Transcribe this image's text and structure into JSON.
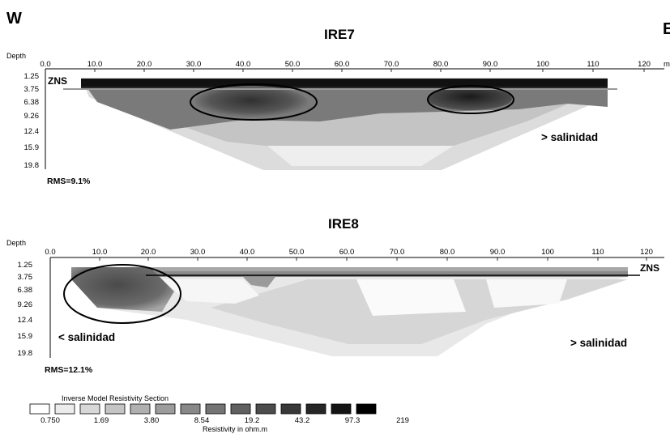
{
  "directions": {
    "west": "W",
    "east": "E"
  },
  "depth_label": "Depth",
  "x_ticks": [
    "0.0",
    "10.0",
    "20.0",
    "30.0",
    "40.0",
    "50.0",
    "60.0",
    "70.0",
    "80.0",
    "90.0",
    "100",
    "110",
    "120"
  ],
  "x_unit": "m",
  "depth_ticks": [
    "1.25",
    "3.75",
    "6.38",
    "9.26",
    "12.4",
    "15.9",
    "19.8"
  ],
  "sections": [
    {
      "title": "IRE7",
      "rms": "RMS=9.1%",
      "zns": "ZNS",
      "labels": [
        "> salinidad"
      ]
    },
    {
      "title": "IRE8",
      "rms": "RMS=12.1%",
      "zns": "ZNS",
      "labels": [
        "< salinidad",
        "> salinidad"
      ]
    }
  ],
  "legend": {
    "title": "Inverse Model Resistivity Section",
    "values": [
      "0.750",
      "1.69",
      "3.80",
      "8.54",
      "19.2",
      "43.2",
      "97.3",
      "219"
    ],
    "unit": "Resistivity in ohm.m",
    "colors": [
      "#ffffff",
      "#ececec",
      "#d8d8d8",
      "#c4c4c4",
      "#b0b0b0",
      "#9c9c9c",
      "#888888",
      "#747474",
      "#606060",
      "#4c4c4c",
      "#383838",
      "#262626",
      "#141414",
      "#000000"
    ]
  }
}
